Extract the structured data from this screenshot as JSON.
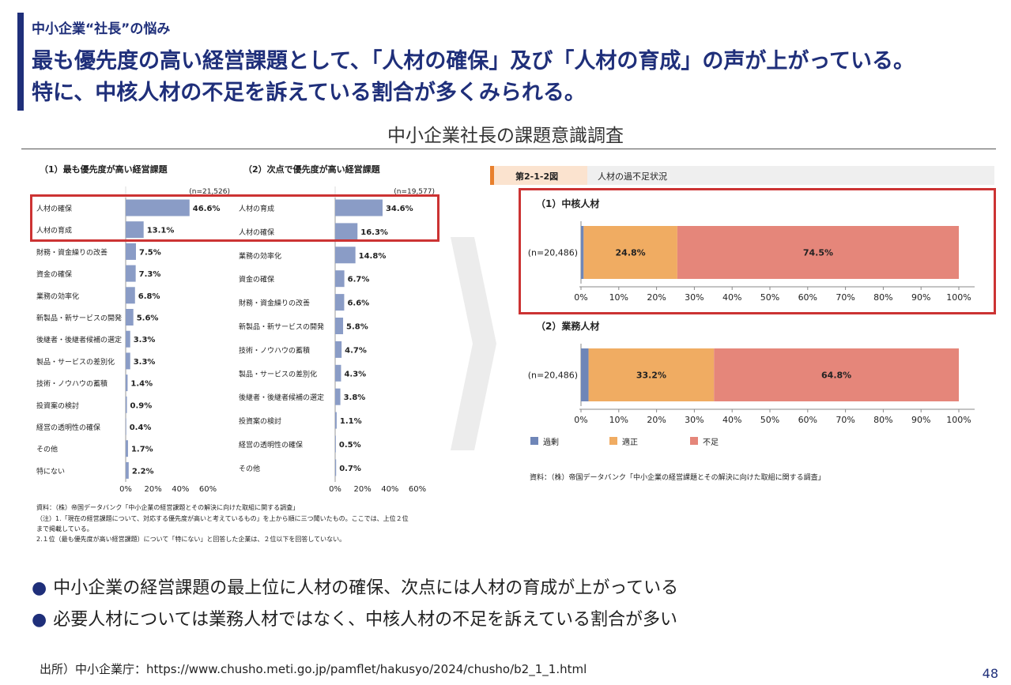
{
  "slide": {
    "kicker": "中小企業“社長”の悩み",
    "headline_line1": "最も優先度の高い経営課題として、「人材の確保」及び「人材の育成」の声が上がっている。",
    "headline_line2": "特に、中核人材の不足を訴えている割合が多くみられる。",
    "section_title": "中小企業社長の課題意識調査",
    "bullets": [
      "中小企業の経営課題の最上位に人材の確保、次点には人材の育成が上がっている",
      "必要人材については業務人材ではなく、中核人材の不足を訴えている割合が多い"
    ],
    "source": "出所）中小企業庁：https://www.chusho.meti.go.jp/pamflet/hakusyo/2024/chusho/b2_1_1.html",
    "page_number": "48",
    "colors": {
      "brand": "#1f2f7a",
      "highlight": "#cc3333",
      "bar": "#8a9cc6",
      "over": "#6f86b8",
      "proper": "#f0ac62",
      "short": "#e5867a"
    }
  },
  "chart_data": [
    {
      "type": "bar",
      "orientation": "horizontal",
      "title": "（1）最も優先度が高い経営課題",
      "n_label": "(n=21,526)",
      "categories": [
        "人材の確保",
        "人材の育成",
        "財務・資金繰りの改善",
        "資金の確保",
        "業務の効率化",
        "新製品・新サービスの開発",
        "後継者・後継者候補の選定",
        "製品・サービスの差別化",
        "技術・ノウハウの蓄積",
        "投資案の検討",
        "経営の透明性の確保",
        "その他",
        "特にない"
      ],
      "values": [
        46.6,
        13.1,
        7.5,
        7.3,
        6.8,
        5.6,
        3.3,
        3.3,
        1.4,
        0.9,
        0.4,
        1.7,
        2.2
      ],
      "ticks": [
        "0%",
        "20%",
        "40%",
        "60%"
      ],
      "xlim": [
        0,
        60
      ]
    },
    {
      "type": "bar",
      "orientation": "horizontal",
      "title": "（2）次点で優先度が高い経営課題",
      "n_label": "(n=19,577)",
      "categories": [
        "人材の育成",
        "人材の確保",
        "業務の効率化",
        "資金の確保",
        "財務・資金繰りの改善",
        "新製品・新サービスの開発",
        "技術・ノウハウの蓄積",
        "製品・サービスの差別化",
        "後継者・後継者候補の選定",
        "投資案の検討",
        "経営の透明性の確保",
        "その他"
      ],
      "values": [
        34.6,
        16.3,
        14.8,
        6.7,
        6.6,
        5.8,
        4.7,
        4.3,
        3.8,
        1.1,
        0.5,
        0.7
      ],
      "ticks": [
        "0%",
        "20%",
        "40%",
        "60%"
      ],
      "xlim": [
        0,
        60
      ]
    },
    {
      "type": "bar",
      "orientation": "horizontal",
      "stacked": true,
      "figure_label": "第2-1-2図",
      "figure_title": "人材の過不足状況",
      "title": "（1）中核人材",
      "categories": [
        "(n=20,486)"
      ],
      "series": [
        {
          "name": "過剰",
          "values": [
            0.7
          ]
        },
        {
          "name": "適正",
          "values": [
            24.8
          ]
        },
        {
          "name": "不足",
          "values": [
            74.5
          ]
        }
      ],
      "ticks": [
        "0%",
        "10%",
        "20%",
        "30%",
        "40%",
        "50%",
        "60%",
        "70%",
        "80%",
        "90%",
        "100%"
      ],
      "xlim": [
        0,
        100
      ]
    },
    {
      "type": "bar",
      "orientation": "horizontal",
      "stacked": true,
      "title": "（2）業務人材",
      "categories": [
        "(n=20,486)"
      ],
      "series": [
        {
          "name": "過剰",
          "values": [
            2.0
          ]
        },
        {
          "name": "適正",
          "values": [
            33.2
          ]
        },
        {
          "name": "不足",
          "values": [
            64.8
          ]
        }
      ],
      "ticks": [
        "0%",
        "10%",
        "20%",
        "30%",
        "40%",
        "50%",
        "60%",
        "70%",
        "80%",
        "90%",
        "100%"
      ],
      "xlim": [
        0,
        100
      ]
    }
  ],
  "chart_notes": {
    "left_source": "資料：（株）帝国データバンク「中小企業の経営課題とその解決に向けた取組に関する調査」",
    "left_note1": "（注）1.「現在の経営課題について、対応する優先度が高いと考えているもの」を上から順に三つ聞いたもの。ここでは、上位２位",
    "left_note2": "まで掲載している。",
    "left_note3": "2.１位（最も優先度が高い経営課題）について「特にない」と回答した企業は、２位以下を回答していない。",
    "right_source": "資料：（株）帝国データバンク「中小企業の経営課題とその解決に向けた取組に関する調査」"
  }
}
